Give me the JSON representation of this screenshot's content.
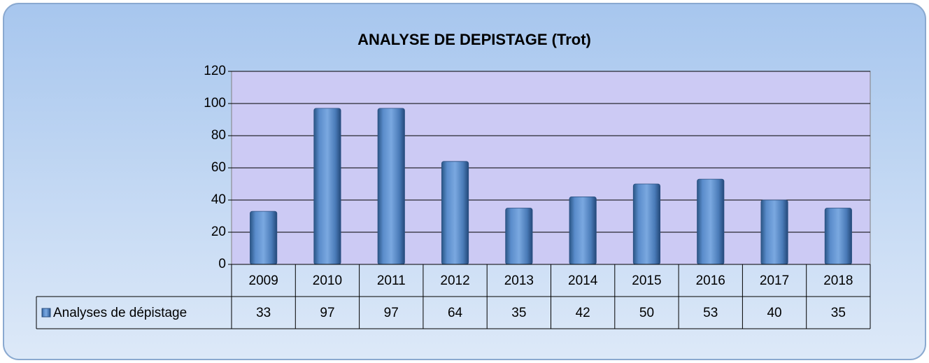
{
  "chart_data": {
    "type": "bar",
    "title": "ANALYSE DE DEPISTAGE (Trot)",
    "categories": [
      "2009",
      "2010",
      "2011",
      "2012",
      "2013",
      "2014",
      "2015",
      "2016",
      "2017",
      "2018"
    ],
    "series": [
      {
        "name": "Analyses de dépistage",
        "color": "#4f81bd",
        "values": [
          33,
          97,
          97,
          64,
          35,
          42,
          50,
          53,
          40,
          35
        ]
      }
    ],
    "ylim": [
      0,
      120
    ],
    "yticks": [
      0,
      20,
      40,
      60,
      80,
      100,
      120
    ],
    "grid": true,
    "data_table": true
  }
}
